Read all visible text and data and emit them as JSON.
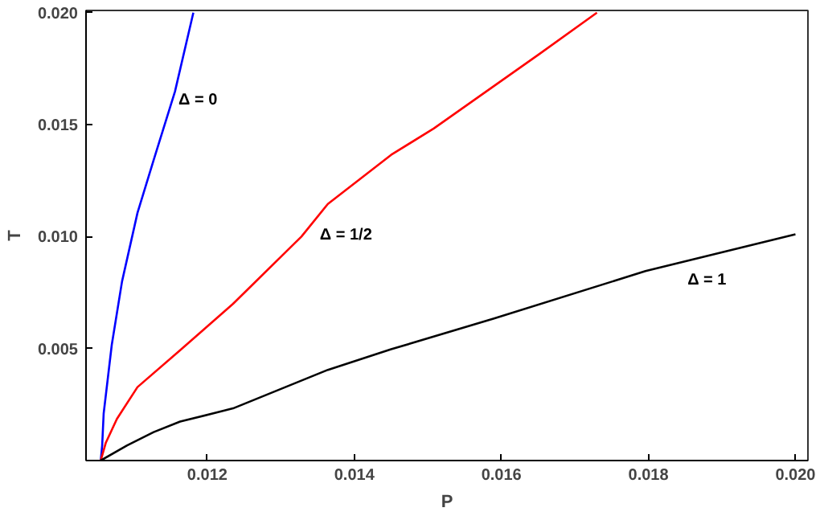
{
  "chart_data": {
    "type": "line",
    "xlabel": "P",
    "ylabel": "T",
    "xlim": [
      0.01035,
      0.02017
    ],
    "ylim": [
      0,
      0.0201
    ],
    "xticks": [
      {
        "value": 0.012,
        "label": "0.012"
      },
      {
        "value": 0.014,
        "label": "0.014"
      },
      {
        "value": 0.016,
        "label": "0.016"
      },
      {
        "value": 0.018,
        "label": "0.018"
      },
      {
        "value": 0.02,
        "label": "0.020"
      }
    ],
    "yticks": [
      {
        "value": 0.005,
        "label": "0.005"
      },
      {
        "value": 0.01,
        "label": "0.010"
      },
      {
        "value": 0.015,
        "label": "0.015"
      },
      {
        "value": 0.02,
        "label": "0.020"
      }
    ],
    "grid": false,
    "marker": "none",
    "line_style": "solid",
    "series": [
      {
        "color": "#0000ff",
        "x": [
          0.01055,
          0.01057,
          0.01059,
          0.0107,
          0.01084,
          0.01105,
          0.01127,
          0.01156,
          0.01181
        ],
        "values": [
          0,
          0.00068,
          0.0021,
          0.00516,
          0.008,
          0.01106,
          0.01342,
          0.01648,
          0.02
        ]
      },
      {
        "color": "#ff0000",
        "x": [
          0.01055,
          0.01062,
          0.01077,
          0.01105,
          0.01163,
          0.01235,
          0.01328,
          0.01364,
          0.0145,
          0.01508,
          0.01651,
          0.0173
        ],
        "values": [
          0,
          0.0008,
          0.00186,
          0.00328,
          0.00493,
          0.007,
          0.01,
          0.01146,
          0.01365,
          0.01483,
          0.01814,
          0.02
        ]
      },
      {
        "color": "#000000",
        "x": [
          0.01055,
          0.01091,
          0.01127,
          0.01163,
          0.01235,
          0.01364,
          0.0145,
          0.0159,
          0.01796,
          0.02
        ],
        "values": [
          0,
          0.00068,
          0.00127,
          0.00174,
          0.00233,
          0.00405,
          0.00497,
          0.00634,
          0.00846,
          0.0101
        ]
      }
    ],
    "annotations": [
      "Δ = 0",
      "Δ = 1/2",
      "Δ = 1"
    ]
  }
}
